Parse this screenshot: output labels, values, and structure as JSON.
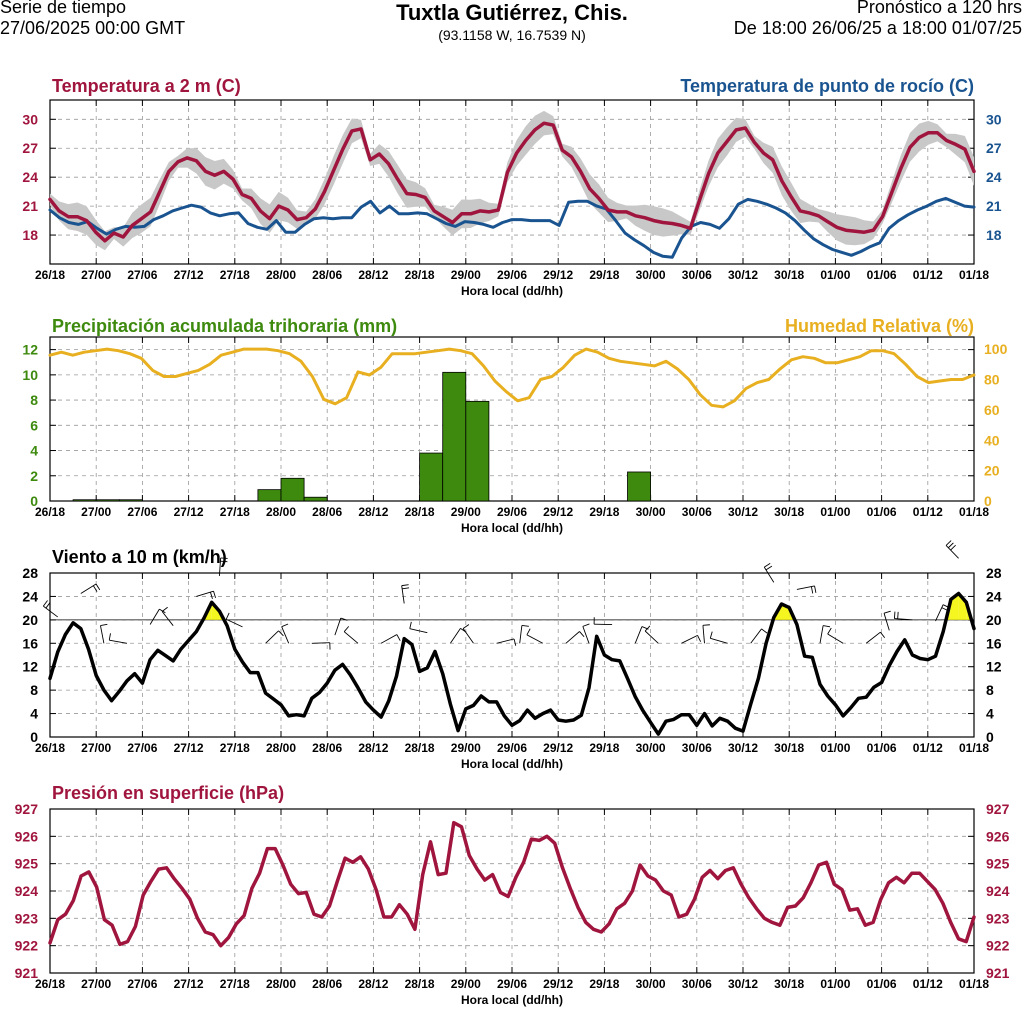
{
  "header": {
    "left_line1": "Serie de tiempo",
    "left_line2": "27/06/2025 00:00 GMT",
    "title": "Tuxtla Gutiérrez, Chis.",
    "coords": "(93.1158 W, 16.7539 N)",
    "right_line1": "Pronóstico a 120 hrs",
    "right_line2": "De 18:00 26/06/25 a 18:00 01/07/25"
  },
  "colors": {
    "temperature": "#a0153e",
    "dewpoint": "#1a5490",
    "precip_title": "#3d8a0e",
    "precip_bar": "#3d8a0e",
    "humidity": "#e8b020",
    "wind": "#000000",
    "wind_fill": "#f5f520",
    "pressure": "#a0153e",
    "spread": "#c8c8c8"
  },
  "chart_data": [
    {
      "type": "line",
      "id": "temperature",
      "title": "Temperatura a 2 m (C)",
      "title_right": "Temperatura de punto de rocío (C)",
      "xlabel": "Hora local (dd/hh)",
      "x_ticks": [
        "26/18",
        "27/00",
        "27/06",
        "27/12",
        "27/18",
        "28/00",
        "28/06",
        "28/12",
        "28/18",
        "29/00",
        "29/06",
        "29/12",
        "29/18",
        "30/00",
        "30/06",
        "30/12",
        "30/18",
        "01/00",
        "01/06",
        "01/12",
        "01/18"
      ],
      "ylim": [
        15,
        32
      ],
      "yticks": [
        18,
        21,
        24,
        27,
        30
      ],
      "series": [
        {
          "name": "Temperatura a 2 m",
          "values": [
            21.7,
            20.5,
            19.9,
            19.9,
            19.5,
            18.3,
            17.4,
            18.2,
            17.8,
            19.0,
            19.7,
            20.4,
            22.5,
            24.6,
            25.6,
            26.0,
            25.7,
            24.6,
            24.2,
            24.6,
            23.8,
            22.2,
            21.8,
            20.5,
            19.7,
            21.0,
            20.6,
            19.6,
            19.8,
            20.7,
            22.5,
            24.7,
            26.9,
            28.8,
            29.0,
            25.8,
            26.4,
            25.4,
            23.8,
            22.3,
            22.2,
            21.9,
            20.5,
            19.9,
            19.3,
            20.2,
            20.2,
            20.5,
            20.4,
            20.6,
            24.5,
            26.5,
            27.8,
            28.9,
            29.6,
            29.4,
            26.8,
            26.1,
            24.6,
            22.8,
            21.8,
            20.6,
            20.4,
            20.4,
            20.0,
            19.8,
            19.5,
            19.3,
            19.2,
            19.0,
            18.7,
            21.6,
            24.4,
            26.5,
            27.7,
            28.9,
            29.1,
            27.6,
            26.5,
            25.8,
            23.6,
            22.0,
            20.5,
            20.3,
            20.0,
            19.4,
            18.8,
            18.5,
            18.4,
            18.3,
            18.5,
            19.9,
            22.4,
            24.9,
            27.1,
            28.1,
            28.6,
            28.6,
            27.8,
            27.4,
            26.9,
            24.6
          ]
        },
        {
          "name": "Temperatura de punto de rocío",
          "values": [
            20.6,
            19.8,
            19.3,
            19.1,
            19.4,
            18.7,
            18.1,
            18.6,
            18.9,
            18.8,
            18.9,
            19.6,
            20.0,
            20.5,
            20.8,
            21.1,
            20.9,
            20.3,
            20.0,
            20.2,
            20.3,
            19.2,
            18.8,
            18.6,
            19.5,
            18.3,
            18.3,
            19.1,
            19.7,
            19.8,
            19.7,
            19.8,
            19.8,
            20.9,
            21.5,
            20.3,
            21.0,
            20.2,
            20.2,
            20.3,
            20.2,
            19.7,
            19.2,
            18.9,
            19.4,
            19.3,
            19.1,
            18.8,
            19.3,
            19.6,
            19.6,
            19.5,
            19.5,
            19.5,
            19.0,
            21.4,
            21.5,
            21.5,
            21.0,
            20.7,
            19.5,
            18.2,
            17.5,
            16.9,
            16.2,
            15.8,
            15.7,
            17.7,
            18.9,
            19.3,
            19.1,
            18.7,
            19.7,
            21.2,
            21.7,
            21.5,
            21.2,
            20.8,
            20.3,
            19.5,
            18.5,
            17.6,
            17.0,
            16.5,
            16.2,
            15.9,
            16.3,
            16.8,
            17.2,
            18.7,
            19.5,
            20.1,
            20.6,
            21.0,
            21.5,
            21.8,
            21.4,
            21.0,
            20.9
          ]
        }
      ]
    },
    {
      "type": "bar",
      "id": "precipitation",
      "title": "Precipitación acumulada trihoraria (mm)",
      "title_right": "Humedad Relativa (%)",
      "xlabel": "Hora local (dd/hh)",
      "x_ticks": [
        "26/18",
        "27/00",
        "27/06",
        "27/12",
        "27/18",
        "28/00",
        "28/06",
        "28/12",
        "28/18",
        "29/00",
        "29/06",
        "29/12",
        "29/18",
        "30/00",
        "30/06",
        "30/12",
        "30/18",
        "01/00",
        "01/06",
        "01/12",
        "01/18"
      ],
      "ylim": [
        0,
        13
      ],
      "yticks": [
        0,
        2,
        4,
        6,
        8,
        10,
        12
      ],
      "y2lim": [
        0,
        108
      ],
      "y2ticks": [
        0,
        20,
        40,
        60,
        80,
        100
      ],
      "bars": [
        0,
        0.1,
        0.1,
        0.1,
        0,
        0,
        0,
        0,
        0,
        0.9,
        1.8,
        0.3,
        0,
        0,
        0,
        0,
        3.8,
        10.2,
        7.9,
        0,
        0,
        0,
        0,
        0,
        0,
        2.3,
        0,
        0,
        0,
        0,
        0,
        0,
        0,
        0,
        0,
        0,
        0,
        0,
        0,
        0
      ],
      "series": [
        {
          "name": "Humedad Relativa",
          "values": [
            96,
            98,
            96,
            98,
            99,
            100,
            99,
            97,
            94,
            86,
            82,
            82,
            84,
            86,
            90,
            96,
            98,
            100,
            100,
            100,
            99,
            97,
            92,
            82,
            67,
            64,
            68,
            85,
            83,
            88,
            97,
            97,
            97,
            98,
            99,
            100,
            99,
            97,
            89,
            79,
            72,
            66,
            68,
            80,
            82,
            88,
            96,
            100,
            98,
            94,
            92,
            91,
            90,
            89,
            92,
            87,
            80,
            70,
            63,
            62,
            66,
            74,
            78,
            80,
            87,
            93,
            95,
            94,
            91,
            91,
            93,
            95,
            99,
            99,
            97,
            90,
            82,
            78,
            79,
            80,
            80,
            83
          ]
        }
      ]
    },
    {
      "type": "line",
      "id": "wind",
      "title": "Viento a 10 m (km/h)",
      "xlabel": "Hora local (dd/hh)",
      "x_ticks": [
        "26/18",
        "27/00",
        "27/06",
        "27/12",
        "27/18",
        "28/00",
        "28/06",
        "28/12",
        "28/18",
        "29/00",
        "29/06",
        "29/12",
        "29/18",
        "30/00",
        "30/06",
        "30/12",
        "30/18",
        "01/00",
        "01/06",
        "01/12",
        "01/18"
      ],
      "ylim": [
        0,
        28
      ],
      "yticks": [
        0,
        4,
        8,
        12,
        16,
        20,
        24,
        28
      ],
      "threshold": 20,
      "series": [
        {
          "name": "Viento a 10 m",
          "values": [
            10,
            14.5,
            17.5,
            19.5,
            18.5,
            15,
            10.5,
            8,
            6.2,
            7.8,
            9.6,
            10.8,
            9.2,
            13.2,
            14.8,
            13.9,
            13,
            15,
            16.5,
            18,
            20.3,
            23,
            21.5,
            19,
            15,
            12.8,
            11,
            11,
            7.5,
            6.5,
            5.5,
            3.6,
            3.8,
            3.6,
            6.6,
            7.6,
            9.2,
            11.4,
            12.4,
            10.6,
            8.4,
            6,
            4.6,
            3.4,
            6.2,
            10.4,
            16.8,
            15.8,
            11.2,
            11.8,
            14.6,
            10.8,
            5.6,
            1.1,
            4.8,
            5.4,
            7,
            6,
            6,
            3.6,
            2,
            2.8,
            4.6,
            3.2,
            4,
            4.6,
            2.9,
            2.7,
            2.9,
            3.7,
            8.4,
            17.2,
            14,
            13.2,
            13,
            10,
            6.9,
            4.5,
            2.5,
            0.5,
            2.7,
            3,
            3.8,
            3.8,
            2,
            4,
            1.9,
            3.2,
            2.7,
            1.5,
            1,
            5.6,
            10,
            16,
            20.4,
            22.7,
            22.1,
            19.2,
            13.8,
            13.6,
            9,
            7,
            5.5,
            3.6,
            5,
            6.6,
            6.8,
            8.5,
            9.3,
            12.2,
            14.6,
            16.6,
            14,
            13.4,
            13.2,
            13.8,
            18,
            23.5,
            24.5,
            23,
            18.5
          ]
        }
      ]
    },
    {
      "type": "line",
      "id": "pressure",
      "title": "Presión en superficie (hPa)",
      "xlabel": "Hora local (dd/hh)",
      "x_ticks": [
        "26/18",
        "27/00",
        "27/06",
        "27/12",
        "27/18",
        "28/00",
        "28/06",
        "28/12",
        "28/18",
        "29/00",
        "29/06",
        "29/12",
        "29/18",
        "30/00",
        "30/06",
        "30/12",
        "30/18",
        "01/00",
        "01/06",
        "01/12",
        "01/18"
      ],
      "ylim": [
        921,
        927
      ],
      "yticks": [
        921,
        922,
        923,
        924,
        925,
        926,
        927
      ],
      "series": [
        {
          "name": "Presión en superficie",
          "values": [
            922.1,
            922.95,
            923.15,
            923.65,
            924.55,
            924.7,
            924.15,
            922.95,
            922.75,
            922.05,
            922.15,
            922.7,
            923.85,
            924.35,
            924.8,
            924.85,
            924.45,
            924.1,
            923.7,
            923.0,
            922.5,
            922.4,
            922.0,
            922.3,
            922.8,
            923.1,
            924.1,
            924.65,
            925.55,
            925.55,
            924.95,
            924.25,
            923.9,
            923.95,
            923.15,
            923.05,
            923.45,
            924.35,
            925.2,
            925.05,
            925.25,
            924.8,
            924.05,
            923.05,
            923.05,
            923.5,
            923.15,
            922.6,
            924.6,
            925.8,
            924.6,
            924.65,
            926.5,
            926.35,
            925.3,
            924.8,
            924.4,
            924.6,
            923.95,
            923.8,
            924.5,
            925.05,
            925.9,
            925.85,
            926.0,
            925.75,
            924.85,
            924.1,
            923.4,
            922.85,
            922.6,
            922.5,
            922.8,
            923.35,
            923.55,
            924.0,
            924.95,
            924.55,
            924.4,
            924.0,
            923.85,
            923.05,
            923.15,
            923.7,
            924.5,
            924.75,
            924.45,
            924.75,
            924.85,
            924.25,
            923.75,
            923.35,
            923.0,
            922.85,
            922.75,
            923.4,
            923.45,
            923.75,
            924.3,
            924.95,
            925.05,
            924.25,
            924.05,
            923.3,
            923.35,
            922.75,
            922.85,
            923.7,
            924.3,
            924.5,
            924.3,
            924.65,
            924.65,
            924.35,
            924.05,
            923.55,
            922.85,
            922.25,
            922.15,
            923.05
          ]
        }
      ]
    }
  ]
}
